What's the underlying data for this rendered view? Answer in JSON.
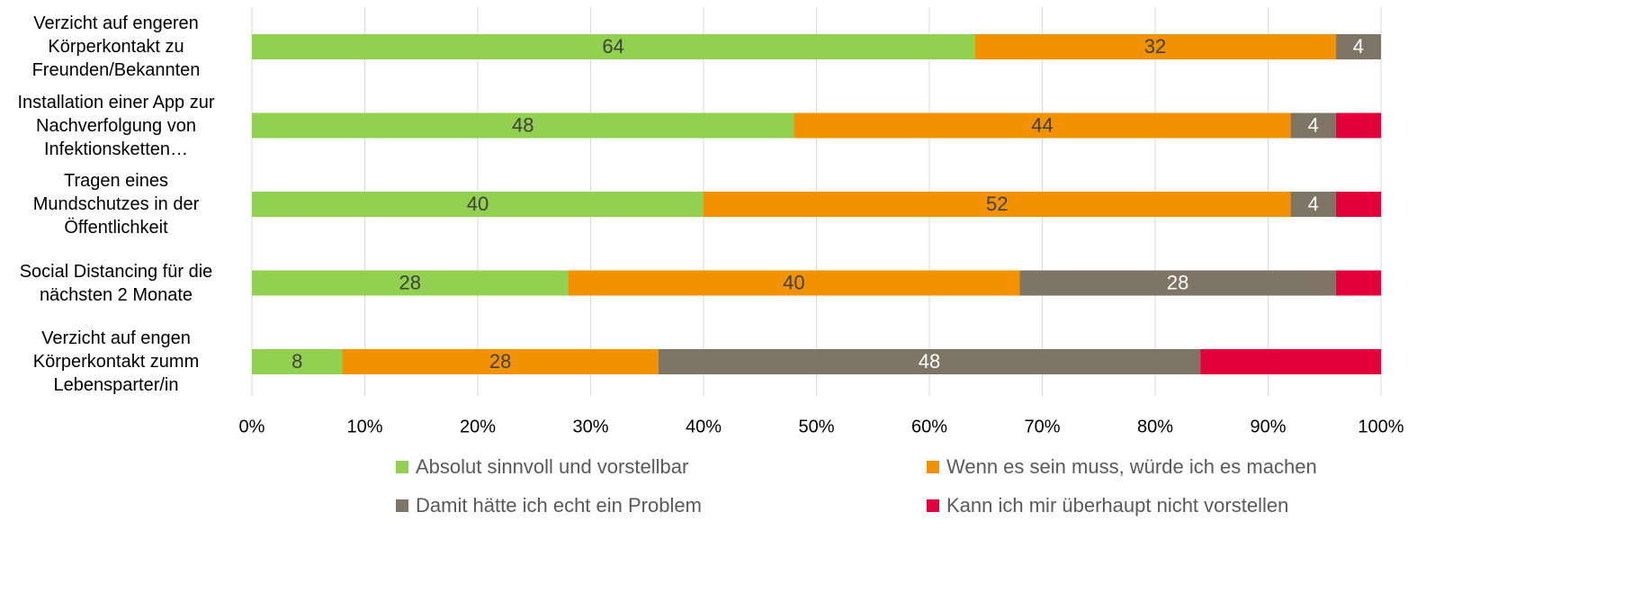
{
  "chart_data": {
    "type": "stacked-bar-horizontal",
    "categories": [
      "Verzicht auf engeren\nKörperkontakt zu\nFreunden/Bekannten",
      "Installation einer App zur\nNachverfolgung von\nInfektionsketten…",
      "Tragen eines\nMundschutzes in der\nÖffentlichkeit",
      "Social Distancing für die\nnächsten 2 Monate",
      "Verzicht auf engen\nKörperkontakt zumm\nLebensparter/in"
    ],
    "series": [
      {
        "name": "Absolut sinnvoll und vorstellbar",
        "color": "#92d050",
        "label_color": "#404040",
        "values": [
          64,
          48,
          40,
          28,
          8
        ]
      },
      {
        "name": "Wenn es sein muss, würde ich es machen",
        "color": "#f39200",
        "label_color": "#404040",
        "values": [
          32,
          44,
          52,
          40,
          28
        ]
      },
      {
        "name": "Damit hätte ich echt ein Problem",
        "color": "#7f7566",
        "label_color": "#ffffff",
        "values": [
          4,
          4,
          4,
          28,
          48
        ]
      },
      {
        "name": "Kann ich mir überhaupt nicht vorstellen",
        "color": "#e4003a",
        "values": [
          0,
          4,
          4,
          4,
          16
        ]
      }
    ],
    "xlim": [
      0,
      100
    ],
    "xticks": [
      {
        "value": 0,
        "label": "0%"
      },
      {
        "value": 10,
        "label": "10%"
      },
      {
        "value": 20,
        "label": "20%"
      },
      {
        "value": 30,
        "label": "30%"
      },
      {
        "value": 40,
        "label": "40%"
      },
      {
        "value": 50,
        "label": "50%"
      },
      {
        "value": 60,
        "label": "60%"
      },
      {
        "value": 70,
        "label": "70%"
      },
      {
        "value": 80,
        "label": "80%"
      },
      {
        "value": 90,
        "label": "90%"
      },
      {
        "value": 100,
        "label": "100%"
      }
    ],
    "grid": true,
    "legend": "bottom"
  }
}
